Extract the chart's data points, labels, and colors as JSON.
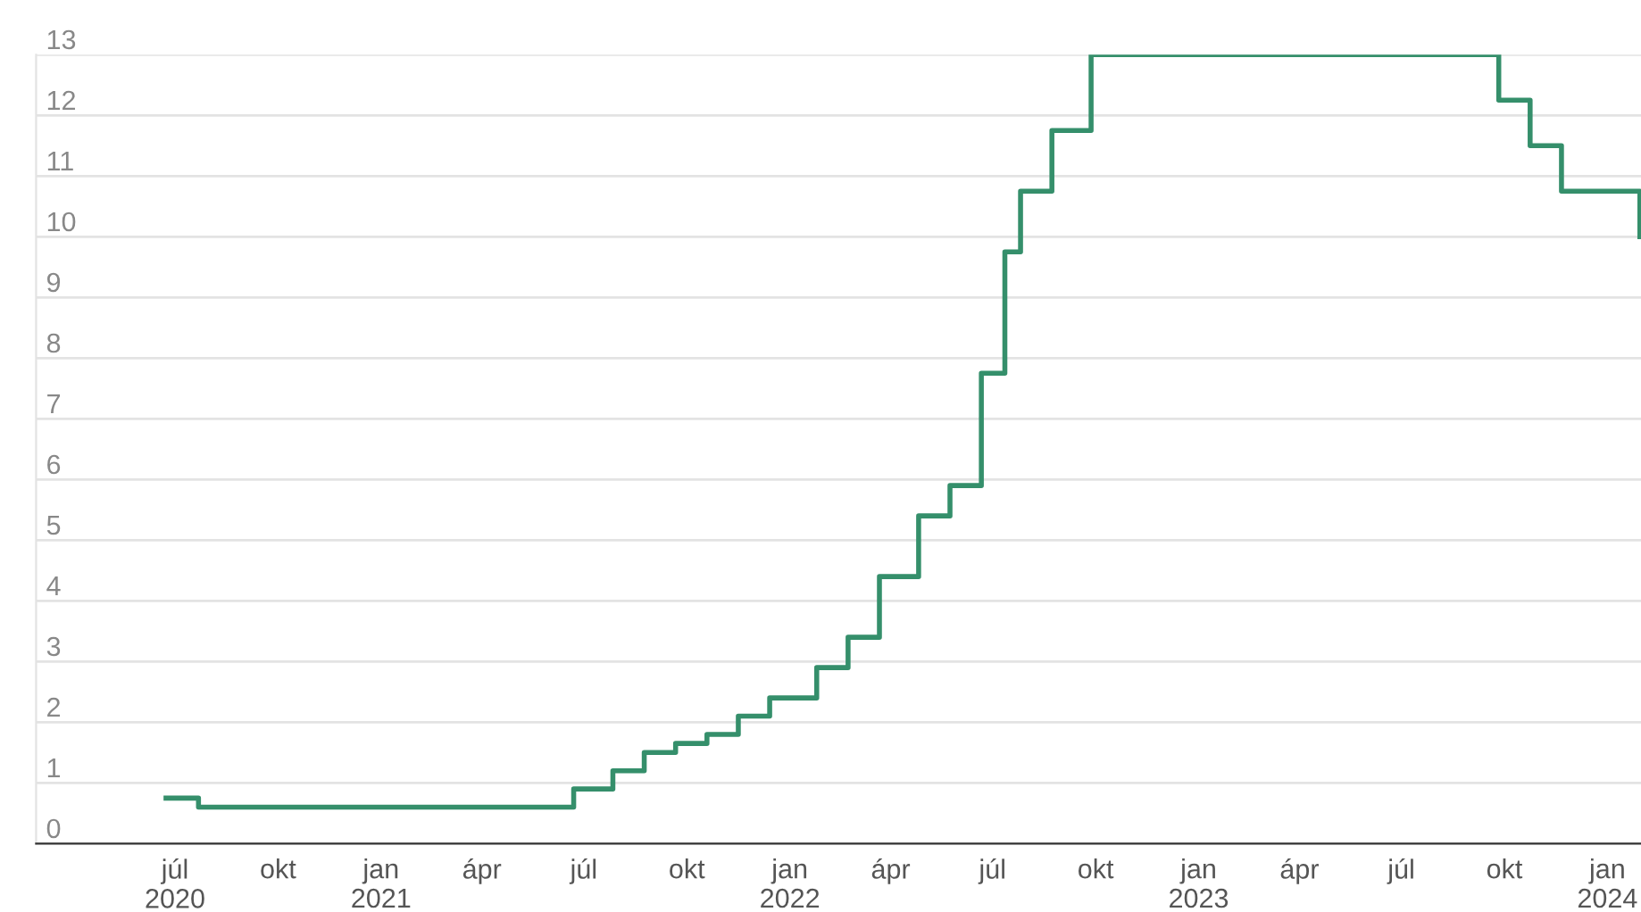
{
  "chart_data": {
    "type": "step",
    "color": "#358f6b",
    "x": [
      "2020-06-23",
      "2020-07-22",
      "2021-06-22",
      "2021-07-27",
      "2021-08-24",
      "2021-09-21",
      "2021-10-19",
      "2021-11-16",
      "2021-12-14",
      "2022-01-25",
      "2022-02-22",
      "2022-03-22",
      "2022-04-26",
      "2022-05-24",
      "2022-06-21",
      "2022-07-12",
      "2022-07-26",
      "2022-08-23",
      "2022-09-27",
      "2023-09-26",
      "2023-10-24",
      "2023-11-21",
      "2024-01-30"
    ],
    "values": [
      0.75,
      0.6,
      0.9,
      1.2,
      1.5,
      1.65,
      1.8,
      2.1,
      2.4,
      2.9,
      3.4,
      4.4,
      5.4,
      5.9,
      7.75,
      9.75,
      10.75,
      11.75,
      13,
      12.25,
      11.5,
      10.75,
      10
    ],
    "xlim": [
      "2020-02-28",
      "2024-01-31"
    ],
    "xticks": [
      {
        "value": "2020-07-01",
        "label": "júl\n2020"
      },
      {
        "value": "2020-10-01",
        "label": "okt"
      },
      {
        "value": "2021-01-01",
        "label": "jan\n2021"
      },
      {
        "value": "2021-04-01",
        "label": "ápr"
      },
      {
        "value": "2021-07-01",
        "label": "júl"
      },
      {
        "value": "2021-10-01",
        "label": "okt"
      },
      {
        "value": "2022-01-01",
        "label": "jan\n2022"
      },
      {
        "value": "2022-04-01",
        "label": "ápr"
      },
      {
        "value": "2022-07-01",
        "label": "júl"
      },
      {
        "value": "2022-10-01",
        "label": "okt"
      },
      {
        "value": "2023-01-01",
        "label": "jan\n2023"
      },
      {
        "value": "2023-04-01",
        "label": "ápr"
      },
      {
        "value": "2023-07-01",
        "label": "júl"
      },
      {
        "value": "2023-10-01",
        "label": "okt"
      },
      {
        "value": "2024-01-01",
        "label": "jan\n2024"
      }
    ],
    "ylim": [
      0,
      13
    ],
    "yticks": [
      0,
      1,
      2,
      3,
      4,
      5,
      6,
      7,
      8,
      9,
      10,
      11,
      12,
      13
    ],
    "grid": "y",
    "legend": false
  }
}
